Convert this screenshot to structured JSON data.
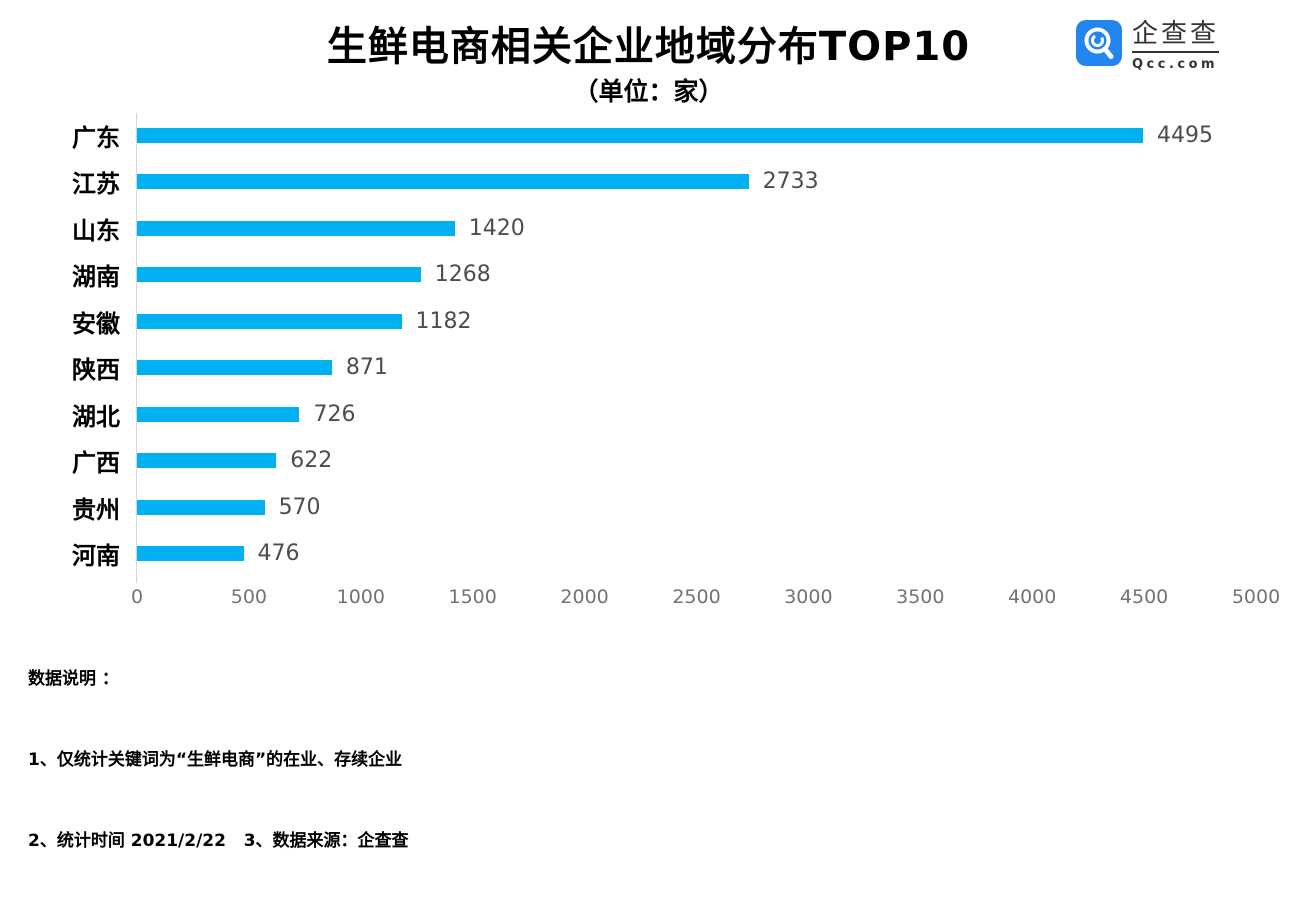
{
  "title": "生鲜电商相关企业地域分布TOP10",
  "subtitle": "（单位：家）",
  "logo": {
    "name": "企查查",
    "domain": "Qcc.com",
    "icon": "qcc-magnifier-icon",
    "brand_color": "#2286EE",
    "text_color": "#333333"
  },
  "chart_data": {
    "type": "bar",
    "orientation": "horizontal",
    "title": "生鲜电商相关企业地域分布TOP10",
    "unit_label": "（单位：家）",
    "categories": [
      "广东",
      "江苏",
      "山东",
      "湖南",
      "安徽",
      "陕西",
      "湖北",
      "广西",
      "贵州",
      "河南"
    ],
    "values": [
      4495,
      2733,
      1420,
      1268,
      1182,
      871,
      726,
      622,
      570,
      476
    ],
    "xlim": [
      0,
      5000
    ],
    "x_ticks": [
      0,
      500,
      1000,
      1500,
      2000,
      2500,
      3000,
      3500,
      4000,
      4500,
      5000
    ],
    "bar_color": "#00B0F0",
    "grid": false,
    "value_labels": true,
    "legend": "none"
  },
  "notes": {
    "heading": "数据说明 ：",
    "line1": "1、仅统计关键词为“生鲜电商”的在业、存续企业",
    "line2": "2、统计时间 2021/2/22   3、数据来源：企查查"
  }
}
